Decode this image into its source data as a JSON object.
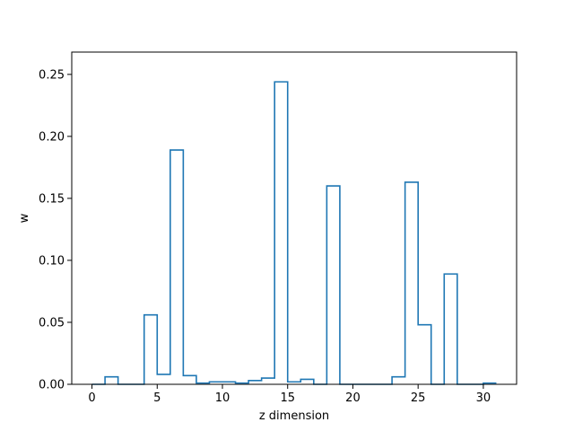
{
  "chart_data": {
    "type": "step",
    "xlabel": "z dimension",
    "ylabel": "w",
    "xlim": [
      -1.55,
      32.55
    ],
    "ylim": [
      0,
      0.268
    ],
    "x_ticks": [
      0,
      5,
      10,
      15,
      20,
      25,
      30
    ],
    "y_ticks": [
      0.0,
      0.05,
      0.1,
      0.15,
      0.2,
      0.25
    ],
    "x_tick_labels": [
      "0",
      "5",
      "10",
      "15",
      "20",
      "25",
      "30"
    ],
    "y_tick_labels": [
      "0.00",
      "0.05",
      "0.10",
      "0.15",
      "0.20",
      "0.25"
    ],
    "grid": false,
    "series": [
      {
        "color": "#1f77b4",
        "x": [
          0,
          1,
          2,
          3,
          4,
          5,
          6,
          7,
          8,
          9,
          10,
          11,
          12,
          13,
          14,
          15,
          16,
          17,
          18,
          19,
          20,
          21,
          22,
          23,
          24,
          25,
          26,
          27,
          28,
          29,
          30
        ],
        "values": [
          0.0,
          0.006,
          0.0,
          0.0,
          0.056,
          0.008,
          0.189,
          0.007,
          0.001,
          0.002,
          0.002,
          0.001,
          0.003,
          0.005,
          0.244,
          0.002,
          0.004,
          0.0,
          0.16,
          0.0,
          0.0,
          0.0,
          0.0,
          0.006,
          0.163,
          0.048,
          0.0,
          0.089,
          0.0,
          0.0,
          0.001
        ]
      }
    ]
  }
}
